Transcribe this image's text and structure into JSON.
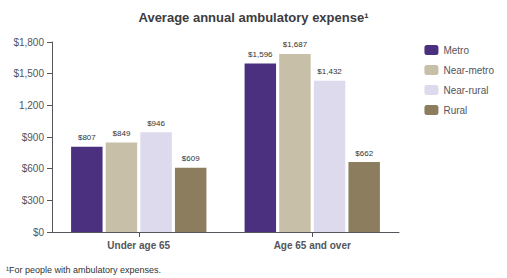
{
  "chart_data": {
    "type": "bar",
    "title": "Average annual ambulatory expense¹",
    "annotations": [
      "¹For people with ambulatory expenses."
    ],
    "categories": [
      "Under age 65",
      "Age 65 and over"
    ],
    "series": [
      {
        "name": "Metro",
        "color": "#4b3080",
        "values": [
          807,
          1596
        ],
        "value_labels": [
          "$807",
          "$1,596"
        ]
      },
      {
        "name": "Near-metro",
        "color": "#c8bfa8",
        "values": [
          849,
          1687
        ],
        "value_labels": [
          "$849",
          "$1,687"
        ]
      },
      {
        "name": "Near-rural",
        "color": "#dcdaec",
        "values": [
          946,
          1432
        ],
        "value_labels": [
          "$946",
          "$1,432"
        ]
      },
      {
        "name": "Rural",
        "color": "#8b7d5e",
        "values": [
          609,
          662
        ],
        "value_labels": [
          "$609",
          "$662"
        ]
      }
    ],
    "ylim": [
      0,
      1800
    ],
    "yticks": [
      {
        "value": 0,
        "label": "$0"
      },
      {
        "value": 300,
        "label": "$300"
      },
      {
        "value": 600,
        "label": "$600"
      },
      {
        "value": 900,
        "label": "$900"
      },
      {
        "value": 1200,
        "label": "1,200"
      },
      {
        "value": 1500,
        "label": "$1,500"
      },
      {
        "value": 1800,
        "label": "$1,800"
      }
    ],
    "grid": false,
    "legend": "right",
    "data_labels": true
  }
}
